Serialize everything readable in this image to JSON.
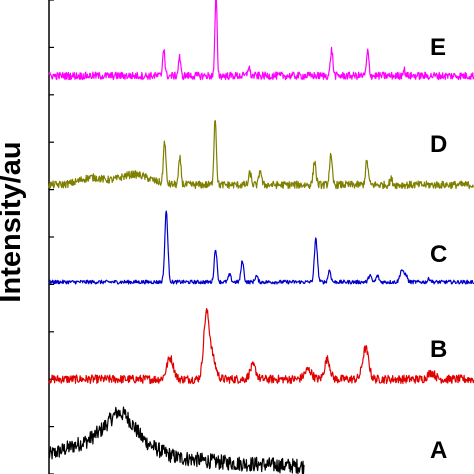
{
  "chart_data": {
    "type": "line",
    "title": "",
    "xlabel": "",
    "ylabel": "Intensity/au",
    "xlim": [
      0,
      100
    ],
    "ylim": [
      0,
      100
    ],
    "grid": false,
    "legend": "none",
    "series": [
      {
        "name": "A",
        "color": "#000000",
        "baseline": 2,
        "noise": 1.6,
        "x": [
          0,
          3,
          6,
          9,
          12,
          14,
          16,
          18,
          20,
          22,
          24,
          27,
          30,
          35,
          40,
          45,
          50,
          55,
          60
        ],
        "y": [
          4,
          5,
          6,
          7,
          9,
          11,
          13,
          12.5,
          10,
          7.5,
          6,
          4.5,
          3.5,
          3,
          2.5,
          2.2,
          2,
          1.8,
          1.6
        ],
        "peaks": []
      },
      {
        "name": "B",
        "color": "#e00000",
        "baseline": 20,
        "noise": 0.9,
        "peaks": [
          {
            "x": 28.5,
            "y": 4.5,
            "w": 1.1
          },
          {
            "x": 37,
            "y": 12,
            "w": 0.9
          },
          {
            "x": 38.2,
            "y": 5,
            "w": 1.3
          },
          {
            "x": 48,
            "y": 2.8,
            "w": 1.0
          },
          {
            "x": 61,
            "y": 2,
            "w": 1.2
          },
          {
            "x": 65.5,
            "y": 4.2,
            "w": 0.9
          },
          {
            "x": 74.5,
            "y": 6.5,
            "w": 1.0
          },
          {
            "x": 90,
            "y": 1.4,
            "w": 1.2
          }
        ]
      },
      {
        "name": "C",
        "color": "#0000cc",
        "baseline": 40.5,
        "noise": 0.4,
        "peaks": [
          {
            "x": 27.6,
            "y": 15,
            "w": 0.5
          },
          {
            "x": 39.2,
            "y": 7,
            "w": 0.45
          },
          {
            "x": 42.5,
            "y": 1.5,
            "w": 0.45
          },
          {
            "x": 45.5,
            "y": 4.5,
            "w": 0.45
          },
          {
            "x": 48.8,
            "y": 1.3,
            "w": 0.45
          },
          {
            "x": 62.8,
            "y": 9,
            "w": 0.5
          },
          {
            "x": 66,
            "y": 2.5,
            "w": 0.45
          },
          {
            "x": 75.5,
            "y": 1.5,
            "w": 0.45
          },
          {
            "x": 77.3,
            "y": 1.3,
            "w": 0.45
          },
          {
            "x": 83,
            "y": 2.6,
            "w": 0.6
          },
          {
            "x": 84,
            "y": 1.5,
            "w": 0.45
          },
          {
            "x": 89.5,
            "y": 0.7,
            "w": 0.45
          }
        ]
      },
      {
        "name": "D",
        "color": "#7f7f00",
        "baseline": 61,
        "noise": 0.8,
        "bumps": [
          {
            "x": 10,
            "y": 1.5,
            "w": 4
          },
          {
            "x": 20,
            "y": 2.2,
            "w": 5
          }
        ],
        "peaks": [
          {
            "x": 27.2,
            "y": 9,
            "w": 0.4
          },
          {
            "x": 30.8,
            "y": 5.5,
            "w": 0.4
          },
          {
            "x": 39.1,
            "y": 14,
            "w": 0.4
          },
          {
            "x": 47.3,
            "y": 2.5,
            "w": 0.4
          },
          {
            "x": 49.7,
            "y": 3.2,
            "w": 0.4
          },
          {
            "x": 62.5,
            "y": 5,
            "w": 0.45
          },
          {
            "x": 66.3,
            "y": 6,
            "w": 0.45
          },
          {
            "x": 74.8,
            "y": 5,
            "w": 0.45
          },
          {
            "x": 80.5,
            "y": 1.2,
            "w": 0.45
          }
        ]
      },
      {
        "name": "E",
        "color": "#ff00ff",
        "baseline": 84,
        "noise": 0.8,
        "peaks": [
          {
            "x": 27,
            "y": 6,
            "w": 0.35
          },
          {
            "x": 30.7,
            "y": 4,
            "w": 0.35
          },
          {
            "x": 39.3,
            "y": 17,
            "w": 0.35
          },
          {
            "x": 47,
            "y": 2,
            "w": 0.35
          },
          {
            "x": 66.5,
            "y": 5.5,
            "w": 0.4
          },
          {
            "x": 75,
            "y": 5,
            "w": 0.4
          },
          {
            "x": 83.5,
            "y": 1.3,
            "w": 0.4
          }
        ]
      }
    ]
  }
}
